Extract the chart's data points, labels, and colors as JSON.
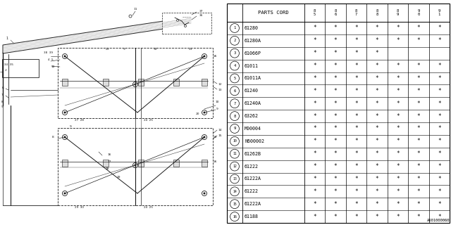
{
  "diagram_id": "A601000060",
  "table_header": "PARTS CORD",
  "col_headers": [
    "8\n5",
    "8\n6",
    "8\n7",
    "8\n8",
    "8\n9",
    "9\n0",
    "9\n1"
  ],
  "rows": [
    {
      "num": 1,
      "code": "61280",
      "marks": [
        1,
        1,
        1,
        1,
        1,
        1,
        1
      ]
    },
    {
      "num": 2,
      "code": "61280A",
      "marks": [
        1,
        1,
        1,
        1,
        1,
        1,
        1
      ]
    },
    {
      "num": 3,
      "code": "61066P",
      "marks": [
        1,
        1,
        1,
        1,
        0,
        0,
        0
      ]
    },
    {
      "num": 4,
      "code": "61011",
      "marks": [
        1,
        1,
        1,
        1,
        1,
        1,
        1
      ]
    },
    {
      "num": 5,
      "code": "61011A",
      "marks": [
        1,
        1,
        1,
        1,
        1,
        1,
        1
      ]
    },
    {
      "num": 6,
      "code": "61240",
      "marks": [
        1,
        1,
        1,
        1,
        1,
        1,
        1
      ]
    },
    {
      "num": 7,
      "code": "61240A",
      "marks": [
        1,
        1,
        1,
        1,
        1,
        1,
        1
      ]
    },
    {
      "num": 8,
      "code": "63262",
      "marks": [
        1,
        1,
        1,
        1,
        1,
        1,
        1
      ]
    },
    {
      "num": 9,
      "code": "M00004",
      "marks": [
        1,
        1,
        1,
        1,
        1,
        1,
        1
      ]
    },
    {
      "num": 10,
      "code": "N600002",
      "marks": [
        1,
        1,
        1,
        1,
        1,
        1,
        1
      ]
    },
    {
      "num": 11,
      "code": "61262B",
      "marks": [
        1,
        1,
        1,
        1,
        1,
        1,
        1
      ]
    },
    {
      "num": 12,
      "code": "61222",
      "marks": [
        1,
        1,
        1,
        1,
        1,
        1,
        1
      ]
    },
    {
      "num": 13,
      "code": "61222A",
      "marks": [
        1,
        1,
        1,
        1,
        1,
        1,
        1
      ]
    },
    {
      "num": 14,
      "code": "61222",
      "marks": [
        1,
        1,
        1,
        1,
        1,
        1,
        1
      ]
    },
    {
      "num": 15,
      "code": "61222A",
      "marks": [
        1,
        1,
        1,
        1,
        1,
        1,
        1
      ]
    },
    {
      "num": 16,
      "code": "61188",
      "marks": [
        1,
        1,
        1,
        1,
        1,
        1,
        1
      ]
    }
  ],
  "bg_color": "#ffffff"
}
